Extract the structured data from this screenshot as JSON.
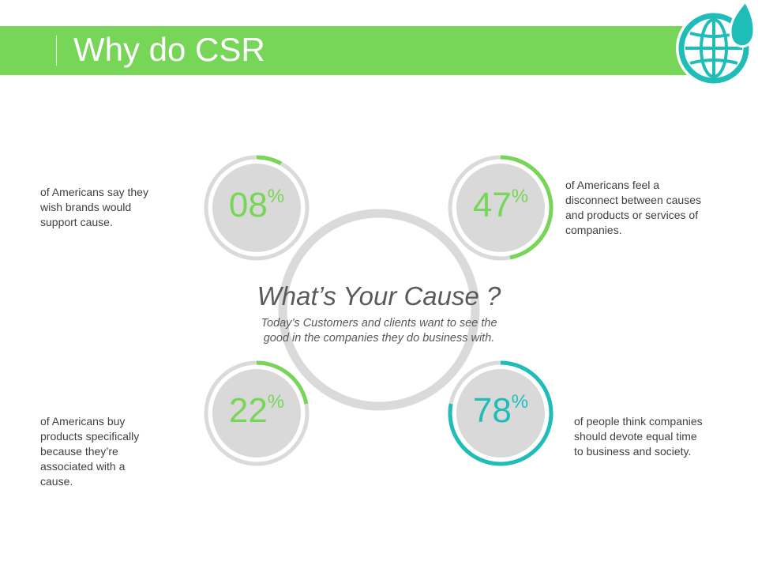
{
  "header": {
    "title": "Why do CSR",
    "bar_color": "#77d558",
    "logo_icon": "globe-leaf-icon"
  },
  "center": {
    "heading": "What’s Your Cause ?",
    "subtext_line1": "Today’s Customers and clients want to see the",
    "subtext_line2": "good in the companies they do business with."
  },
  "stats": [
    {
      "value": "08",
      "unit": "%",
      "fraction": 0.08,
      "color": "#77d558",
      "lines": [
        "of Americans say they",
        "wish brands would",
        "support cause."
      ]
    },
    {
      "value": "47",
      "unit": "%",
      "fraction": 0.47,
      "color": "#77d558",
      "lines": [
        "of Americans feel a",
        "disconnect between causes",
        "and products or services of",
        "companies."
      ]
    },
    {
      "value": "22",
      "unit": "%",
      "fraction": 0.22,
      "color": "#77d558",
      "lines": [
        "of Americans buy",
        "products specifically",
        "because they’re",
        "associated with a",
        "cause."
      ]
    },
    {
      "value": "78",
      "unit": "%",
      "fraction": 0.78,
      "color": "#1fbdb8",
      "lines": [
        "of people think companies",
        "should devote equal time",
        "to business and society."
      ]
    }
  ],
  "colors": {
    "ring_track": "#dadada",
    "ring_inner": "#d9d9d9",
    "teal": "#1fbdb8",
    "green": "#77d558"
  }
}
